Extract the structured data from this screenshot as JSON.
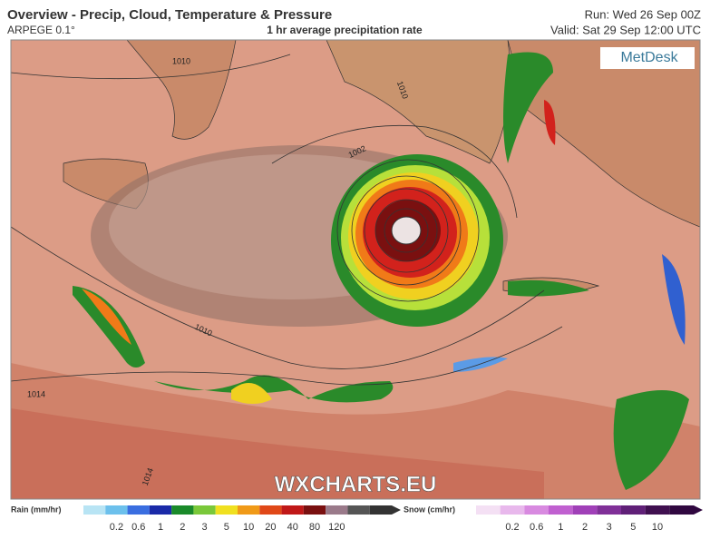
{
  "header": {
    "title": "Overview - Precip, Cloud, Temperature & Pressure",
    "model": "ARPEGE 0.1°",
    "subtitle": "1 hr average precipitation rate",
    "run": "Run: Wed 26 Sep 00Z",
    "valid": "Valid: Sat 29 Sep 12:00 UTC"
  },
  "map": {
    "logo": "MetDesk",
    "watermark": "WXCHARTS.EU",
    "isobar_labels": [
      "1010",
      "1010",
      "1002",
      "1010",
      "1014",
      "1014"
    ]
  },
  "legend": {
    "rain": {
      "title": "Rain (mm/hr)",
      "labels": [
        "0.2",
        "0.6",
        "1",
        "2",
        "3",
        "5",
        "10",
        "20",
        "40",
        "80",
        "120"
      ]
    },
    "snow": {
      "title": "Snow (cm/hr)",
      "labels": [
        "0.2",
        "0.6",
        "1",
        "2",
        "3",
        "5",
        "10"
      ]
    }
  }
}
